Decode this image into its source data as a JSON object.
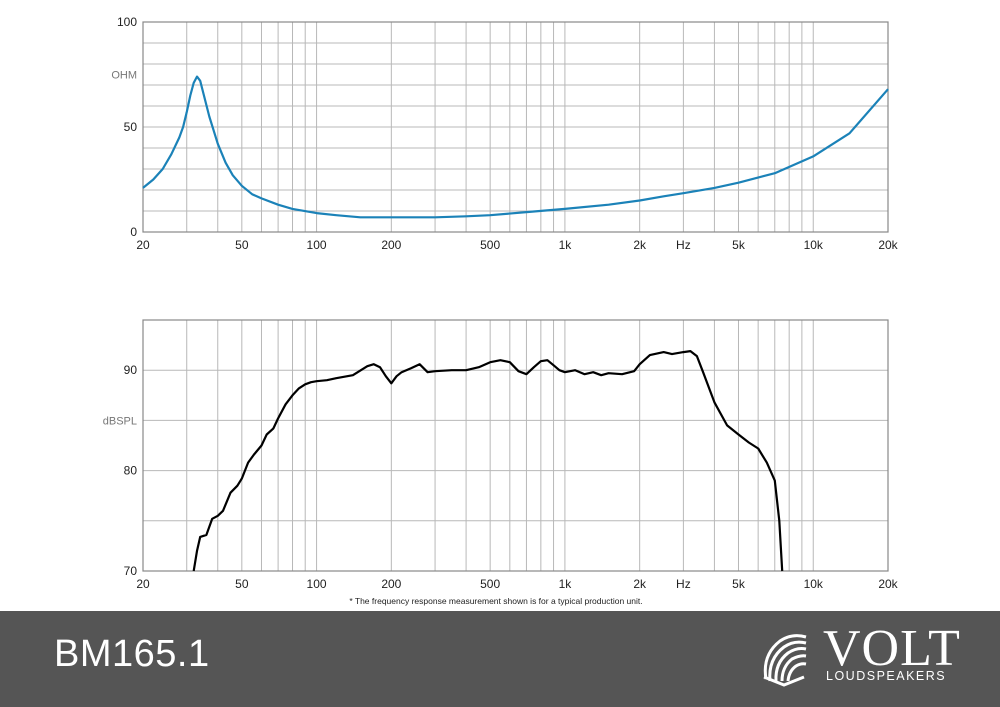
{
  "footnote": "* The frequency response measurement shown is for a typical production unit.",
  "footer": {
    "model": "BM165.1",
    "brand": "VOLT",
    "brand_sub": "LOUDSPEAKERS"
  },
  "colors": {
    "impedance": "#1b82b8",
    "spl": "#000000",
    "footer_bg": "#555555",
    "grid": "#b8b8b8"
  },
  "chart_data": [
    {
      "type": "line",
      "xscale": "log",
      "xlim": [
        20,
        20000
      ],
      "ylim": [
        0,
        100
      ],
      "ylabel": "OHM",
      "xlabel": "Hz",
      "grid": true,
      "x_ticks": [
        "20",
        "50",
        "100",
        "200",
        "500",
        "1k",
        "2k",
        "Hz",
        "5k",
        "10k",
        "20k"
      ],
      "y_ticks": [
        "100",
        "50",
        "0"
      ],
      "series": [
        {
          "color": "#1b82b8",
          "points": [
            [
              20,
              21
            ],
            [
              22,
              25
            ],
            [
              24,
              30
            ],
            [
              26,
              37
            ],
            [
              28,
              45
            ],
            [
              29,
              50
            ],
            [
              30,
              57
            ],
            [
              31,
              65
            ],
            [
              32,
              71
            ],
            [
              33,
              74
            ],
            [
              34,
              72
            ],
            [
              35,
              66
            ],
            [
              37,
              55
            ],
            [
              40,
              42
            ],
            [
              43,
              33
            ],
            [
              46,
              27
            ],
            [
              50,
              22
            ],
            [
              55,
              18
            ],
            [
              60,
              16
            ],
            [
              70,
              13
            ],
            [
              80,
              11
            ],
            [
              100,
              9
            ],
            [
              120,
              8
            ],
            [
              150,
              7
            ],
            [
              200,
              7
            ],
            [
              300,
              7
            ],
            [
              400,
              7.5
            ],
            [
              500,
              8
            ],
            [
              700,
              9.5
            ],
            [
              1000,
              11
            ],
            [
              1500,
              13
            ],
            [
              2000,
              15
            ],
            [
              2500,
              17
            ],
            [
              3000,
              18.5
            ],
            [
              4000,
              21
            ],
            [
              5000,
              23.5
            ],
            [
              7000,
              28
            ],
            [
              10000,
              36
            ],
            [
              14000,
              47
            ],
            [
              20000,
              68
            ]
          ]
        }
      ]
    },
    {
      "type": "line",
      "xscale": "log",
      "xlim": [
        20,
        20000
      ],
      "ylim": [
        70,
        95
      ],
      "ylabel": "dBSPL",
      "xlabel": "Hz",
      "grid": true,
      "x_ticks": [
        "20",
        "50",
        "100",
        "200",
        "500",
        "1k",
        "2k",
        "Hz",
        "5k",
        "10k",
        "20k"
      ],
      "y_ticks": [
        "90",
        "80",
        "70"
      ],
      "series": [
        {
          "color": "#000000",
          "points": [
            [
              32,
              70
            ],
            [
              33,
              72
            ],
            [
              34,
              73.4
            ],
            [
              36,
              73.6
            ],
            [
              38,
              75.2
            ],
            [
              40,
              75.5
            ],
            [
              42,
              76
            ],
            [
              45,
              77.8
            ],
            [
              48,
              78.5
            ],
            [
              50,
              79.2
            ],
            [
              53,
              80.8
            ],
            [
              56,
              81.6
            ],
            [
              60,
              82.5
            ],
            [
              63,
              83.6
            ],
            [
              67,
              84.2
            ],
            [
              70,
              85.2
            ],
            [
              75,
              86.6
            ],
            [
              80,
              87.5
            ],
            [
              85,
              88.2
            ],
            [
              90,
              88.6
            ],
            [
              95,
              88.8
            ],
            [
              100,
              88.9
            ],
            [
              110,
              89
            ],
            [
              120,
              89.2
            ],
            [
              140,
              89.5
            ],
            [
              160,
              90.4
            ],
            [
              170,
              90.6
            ],
            [
              180,
              90.3
            ],
            [
              190,
              89.4
            ],
            [
              200,
              88.7
            ],
            [
              210,
              89.4
            ],
            [
              220,
              89.8
            ],
            [
              240,
              90.2
            ],
            [
              260,
              90.6
            ],
            [
              280,
              89.8
            ],
            [
              300,
              89.9
            ],
            [
              350,
              90
            ],
            [
              400,
              90
            ],
            [
              450,
              90.3
            ],
            [
              500,
              90.8
            ],
            [
              550,
              91
            ],
            [
              600,
              90.8
            ],
            [
              650,
              89.9
            ],
            [
              700,
              89.6
            ],
            [
              750,
              90.3
            ],
            [
              800,
              90.9
            ],
            [
              850,
              91
            ],
            [
              900,
              90.5
            ],
            [
              950,
              90
            ],
            [
              1000,
              89.8
            ],
            [
              1100,
              90
            ],
            [
              1200,
              89.6
            ],
            [
              1300,
              89.8
            ],
            [
              1400,
              89.5
            ],
            [
              1500,
              89.7
            ],
            [
              1700,
              89.6
            ],
            [
              1900,
              89.9
            ],
            [
              2000,
              90.6
            ],
            [
              2200,
              91.5
            ],
            [
              2500,
              91.8
            ],
            [
              2700,
              91.6
            ],
            [
              3000,
              91.8
            ],
            [
              3200,
              91.9
            ],
            [
              3400,
              91.4
            ],
            [
              3600,
              89.8
            ],
            [
              4000,
              86.8
            ],
            [
              4500,
              84.5
            ],
            [
              5000,
              83.6
            ],
            [
              5500,
              82.8
            ],
            [
              6000,
              82.2
            ],
            [
              6500,
              80.8
            ],
            [
              7000,
              79
            ],
            [
              7300,
              75
            ],
            [
              7500,
              70
            ]
          ]
        }
      ]
    }
  ]
}
